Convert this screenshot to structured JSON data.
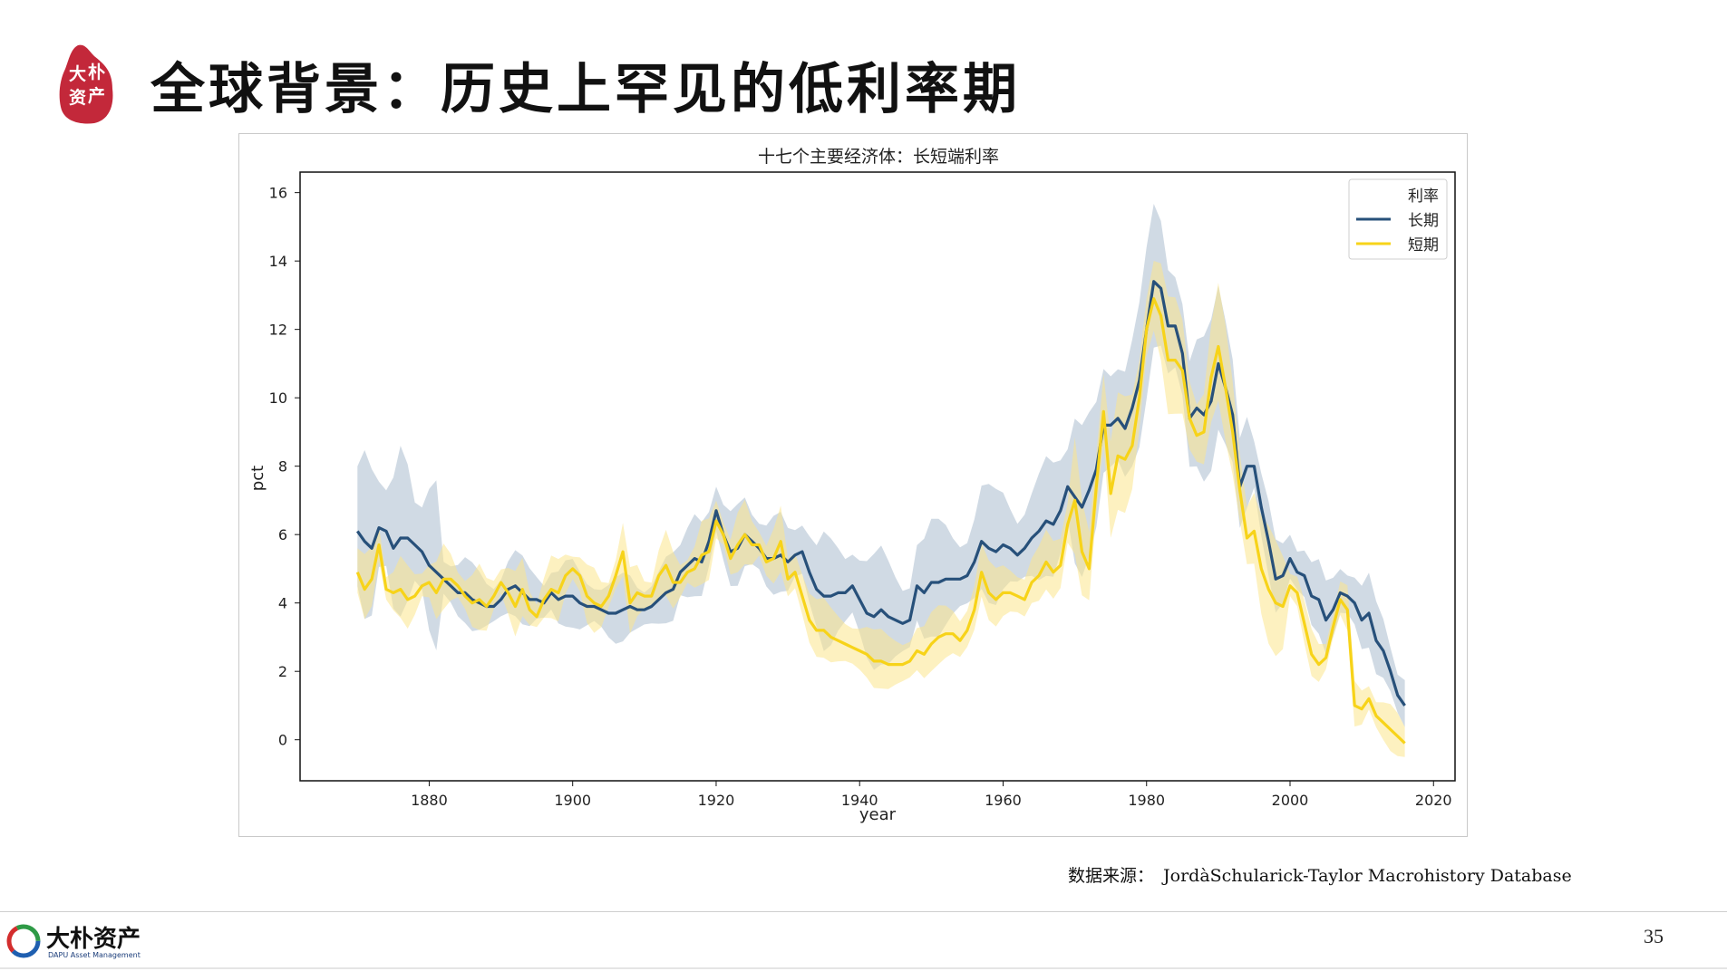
{
  "slide": {
    "title": "全球背景：历史上罕见的低利率期",
    "seal_text": "大朴资产",
    "source_label": "数据来源：",
    "source_text": "JordàSchularick-Taylor Macrohistory Database",
    "page_number": "35",
    "logo_cn": "大朴资产",
    "logo_en": "DAPU Asset Management"
  },
  "colors": {
    "long": "#27507a",
    "long_band": "#a9bccd",
    "short": "#f7d319",
    "short_band": "#fbe58c",
    "seal": "#c3283a",
    "axis": "#111111"
  },
  "chart_data": {
    "type": "line",
    "title": "十七个主要经济体：长短端利率",
    "xlabel": "year",
    "ylabel": "pct",
    "xlim": [
      1862,
      2023
    ],
    "ylim": [
      -1.2,
      16.6
    ],
    "xticks": [
      1880,
      1900,
      1920,
      1940,
      1960,
      1980,
      2000,
      2020
    ],
    "yticks": [
      0,
      2,
      4,
      6,
      8,
      10,
      12,
      14,
      16
    ],
    "grid": false,
    "legend": {
      "title": "利率",
      "position": "top-right"
    },
    "series": [
      {
        "name": "长期",
        "color": "#27507a",
        "points": [
          [
            1870,
            6.1
          ],
          [
            1871,
            5.8
          ],
          [
            1872,
            5.6
          ],
          [
            1873,
            6.2
          ],
          [
            1874,
            6.1
          ],
          [
            1875,
            5.6
          ],
          [
            1876,
            5.9
          ],
          [
            1877,
            5.9
          ],
          [
            1878,
            5.7
          ],
          [
            1879,
            5.5
          ],
          [
            1880,
            5.1
          ],
          [
            1881,
            4.9
          ],
          [
            1882,
            4.7
          ],
          [
            1883,
            4.5
          ],
          [
            1884,
            4.3
          ],
          [
            1885,
            4.3
          ],
          [
            1886,
            4.1
          ],
          [
            1887,
            4.0
          ],
          [
            1888,
            3.9
          ],
          [
            1889,
            3.9
          ],
          [
            1890,
            4.1
          ],
          [
            1891,
            4.4
          ],
          [
            1892,
            4.5
          ],
          [
            1893,
            4.3
          ],
          [
            1894,
            4.1
          ],
          [
            1895,
            4.1
          ],
          [
            1896,
            4.0
          ],
          [
            1897,
            4.3
          ],
          [
            1898,
            4.1
          ],
          [
            1899,
            4.2
          ],
          [
            1900,
            4.2
          ],
          [
            1901,
            4.0
          ],
          [
            1902,
            3.9
          ],
          [
            1903,
            3.9
          ],
          [
            1904,
            3.8
          ],
          [
            1905,
            3.7
          ],
          [
            1906,
            3.7
          ],
          [
            1907,
            3.8
          ],
          [
            1908,
            3.9
          ],
          [
            1909,
            3.8
          ],
          [
            1910,
            3.8
          ],
          [
            1911,
            3.9
          ],
          [
            1912,
            4.1
          ],
          [
            1913,
            4.3
          ],
          [
            1914,
            4.4
          ],
          [
            1915,
            4.9
          ],
          [
            1916,
            5.1
          ],
          [
            1917,
            5.3
          ],
          [
            1918,
            5.2
          ],
          [
            1919,
            5.8
          ],
          [
            1920,
            6.7
          ],
          [
            1921,
            6.0
          ],
          [
            1922,
            5.5
          ],
          [
            1923,
            5.6
          ],
          [
            1924,
            6.0
          ],
          [
            1925,
            5.8
          ],
          [
            1926,
            5.6
          ],
          [
            1927,
            5.3
          ],
          [
            1928,
            5.3
          ],
          [
            1929,
            5.4
          ],
          [
            1930,
            5.2
          ],
          [
            1931,
            5.4
          ],
          [
            1932,
            5.5
          ],
          [
            1933,
            4.9
          ],
          [
            1934,
            4.4
          ],
          [
            1935,
            4.2
          ],
          [
            1936,
            4.2
          ],
          [
            1937,
            4.3
          ],
          [
            1938,
            4.3
          ],
          [
            1939,
            4.5
          ],
          [
            1940,
            4.1
          ],
          [
            1941,
            3.7
          ],
          [
            1942,
            3.6
          ],
          [
            1943,
            3.8
          ],
          [
            1944,
            3.6
          ],
          [
            1945,
            3.5
          ],
          [
            1946,
            3.4
          ],
          [
            1947,
            3.5
          ],
          [
            1948,
            4.5
          ],
          [
            1949,
            4.3
          ],
          [
            1950,
            4.6
          ],
          [
            1951,
            4.6
          ],
          [
            1952,
            4.7
          ],
          [
            1953,
            4.7
          ],
          [
            1954,
            4.7
          ],
          [
            1955,
            4.8
          ],
          [
            1956,
            5.2
          ],
          [
            1957,
            5.8
          ],
          [
            1958,
            5.6
          ],
          [
            1959,
            5.5
          ],
          [
            1960,
            5.7
          ],
          [
            1961,
            5.6
          ],
          [
            1962,
            5.4
          ],
          [
            1963,
            5.6
          ],
          [
            1964,
            5.9
          ],
          [
            1965,
            6.1
          ],
          [
            1966,
            6.4
          ],
          [
            1967,
            6.3
          ],
          [
            1968,
            6.7
          ],
          [
            1969,
            7.4
          ],
          [
            1970,
            7.1
          ],
          [
            1971,
            6.8
          ],
          [
            1972,
            7.3
          ],
          [
            1973,
            7.9
          ],
          [
            1974,
            9.2
          ],
          [
            1975,
            9.2
          ],
          [
            1976,
            9.4
          ],
          [
            1977,
            9.1
          ],
          [
            1978,
            9.7
          ],
          [
            1979,
            10.5
          ],
          [
            1980,
            12.0
          ],
          [
            1981,
            13.4
          ],
          [
            1982,
            13.2
          ],
          [
            1983,
            12.1
          ],
          [
            1984,
            12.1
          ],
          [
            1985,
            11.3
          ],
          [
            1986,
            9.4
          ],
          [
            1987,
            9.7
          ],
          [
            1988,
            9.5
          ],
          [
            1989,
            9.9
          ],
          [
            1990,
            11.0
          ],
          [
            1991,
            10.3
          ],
          [
            1992,
            9.5
          ],
          [
            1993,
            7.4
          ],
          [
            1994,
            8.0
          ],
          [
            1995,
            8.0
          ],
          [
            1996,
            6.8
          ],
          [
            1997,
            5.8
          ],
          [
            1998,
            4.7
          ],
          [
            1999,
            4.8
          ],
          [
            2000,
            5.3
          ],
          [
            2001,
            4.9
          ],
          [
            2002,
            4.8
          ],
          [
            2003,
            4.2
          ],
          [
            2004,
            4.1
          ],
          [
            2005,
            3.5
          ],
          [
            2006,
            3.8
          ],
          [
            2007,
            4.3
          ],
          [
            2008,
            4.2
          ],
          [
            2009,
            4.0
          ],
          [
            2010,
            3.5
          ],
          [
            2011,
            3.7
          ],
          [
            2012,
            2.9
          ],
          [
            2013,
            2.6
          ],
          [
            2014,
            2.0
          ],
          [
            2015,
            1.3
          ],
          [
            2016,
            1.0
          ]
        ]
      },
      {
        "name": "短期",
        "color": "#f7d319",
        "points": [
          [
            1870,
            4.9
          ],
          [
            1871,
            4.4
          ],
          [
            1872,
            4.7
          ],
          [
            1873,
            5.7
          ],
          [
            1874,
            4.4
          ],
          [
            1875,
            4.3
          ],
          [
            1876,
            4.4
          ],
          [
            1877,
            4.1
          ],
          [
            1878,
            4.2
          ],
          [
            1879,
            4.5
          ],
          [
            1880,
            4.6
          ],
          [
            1881,
            4.3
          ],
          [
            1882,
            4.7
          ],
          [
            1883,
            4.7
          ],
          [
            1884,
            4.5
          ],
          [
            1885,
            4.2
          ],
          [
            1886,
            4.0
          ],
          [
            1887,
            4.1
          ],
          [
            1888,
            3.9
          ],
          [
            1889,
            4.2
          ],
          [
            1890,
            4.6
          ],
          [
            1891,
            4.3
          ],
          [
            1892,
            3.9
          ],
          [
            1893,
            4.4
          ],
          [
            1894,
            3.8
          ],
          [
            1895,
            3.6
          ],
          [
            1896,
            4.1
          ],
          [
            1897,
            4.4
          ],
          [
            1898,
            4.3
          ],
          [
            1899,
            4.8
          ],
          [
            1900,
            5.0
          ],
          [
            1901,
            4.8
          ],
          [
            1902,
            4.2
          ],
          [
            1903,
            4.0
          ],
          [
            1904,
            3.9
          ],
          [
            1905,
            4.2
          ],
          [
            1906,
            4.8
          ],
          [
            1907,
            5.5
          ],
          [
            1908,
            4.0
          ],
          [
            1909,
            4.3
          ],
          [
            1910,
            4.2
          ],
          [
            1911,
            4.2
          ],
          [
            1912,
            4.8
          ],
          [
            1913,
            5.1
          ],
          [
            1914,
            4.6
          ],
          [
            1915,
            4.6
          ],
          [
            1916,
            4.9
          ],
          [
            1917,
            5.0
          ],
          [
            1918,
            5.4
          ],
          [
            1919,
            5.5
          ],
          [
            1920,
            6.4
          ],
          [
            1921,
            6.0
          ],
          [
            1922,
            5.3
          ],
          [
            1923,
            5.7
          ],
          [
            1924,
            6.0
          ],
          [
            1925,
            5.7
          ],
          [
            1926,
            5.7
          ],
          [
            1927,
            5.2
          ],
          [
            1928,
            5.3
          ],
          [
            1929,
            5.8
          ],
          [
            1930,
            4.7
          ],
          [
            1931,
            4.9
          ],
          [
            1932,
            4.2
          ],
          [
            1933,
            3.5
          ],
          [
            1934,
            3.2
          ],
          [
            1935,
            3.2
          ],
          [
            1936,
            3.0
          ],
          [
            1937,
            2.9
          ],
          [
            1938,
            2.8
          ],
          [
            1939,
            2.7
          ],
          [
            1940,
            2.6
          ],
          [
            1941,
            2.5
          ],
          [
            1942,
            2.3
          ],
          [
            1943,
            2.3
          ],
          [
            1944,
            2.2
          ],
          [
            1945,
            2.2
          ],
          [
            1946,
            2.2
          ],
          [
            1947,
            2.3
          ],
          [
            1948,
            2.6
          ],
          [
            1949,
            2.5
          ],
          [
            1950,
            2.8
          ],
          [
            1951,
            3.0
          ],
          [
            1952,
            3.1
          ],
          [
            1953,
            3.1
          ],
          [
            1954,
            2.9
          ],
          [
            1955,
            3.2
          ],
          [
            1956,
            3.8
          ],
          [
            1957,
            4.9
          ],
          [
            1958,
            4.3
          ],
          [
            1959,
            4.1
          ],
          [
            1960,
            4.3
          ],
          [
            1961,
            4.3
          ],
          [
            1962,
            4.2
          ],
          [
            1963,
            4.1
          ],
          [
            1964,
            4.6
          ],
          [
            1965,
            4.8
          ],
          [
            1966,
            5.2
          ],
          [
            1967,
            4.9
          ],
          [
            1968,
            5.1
          ],
          [
            1969,
            6.3
          ],
          [
            1970,
            7.0
          ],
          [
            1971,
            5.5
          ],
          [
            1972,
            5.0
          ],
          [
            1973,
            7.4
          ],
          [
            1974,
            9.6
          ],
          [
            1975,
            7.2
          ],
          [
            1976,
            8.3
          ],
          [
            1977,
            8.2
          ],
          [
            1978,
            8.6
          ],
          [
            1979,
            10.0
          ],
          [
            1980,
            12.0
          ],
          [
            1981,
            12.9
          ],
          [
            1982,
            12.4
          ],
          [
            1983,
            11.1
          ],
          [
            1984,
            11.1
          ],
          [
            1985,
            10.8
          ],
          [
            1986,
            9.4
          ],
          [
            1987,
            8.9
          ],
          [
            1988,
            9.0
          ],
          [
            1989,
            10.6
          ],
          [
            1990,
            11.5
          ],
          [
            1991,
            10.3
          ],
          [
            1992,
            9.0
          ],
          [
            1993,
            7.3
          ],
          [
            1994,
            5.9
          ],
          [
            1995,
            6.1
          ],
          [
            1996,
            5.0
          ],
          [
            1997,
            4.4
          ],
          [
            1998,
            4.0
          ],
          [
            1999,
            3.9
          ],
          [
            2000,
            4.5
          ],
          [
            2001,
            4.3
          ],
          [
            2002,
            3.4
          ],
          [
            2003,
            2.5
          ],
          [
            2004,
            2.2
          ],
          [
            2005,
            2.4
          ],
          [
            2006,
            3.3
          ],
          [
            2007,
            4.1
          ],
          [
            2008,
            3.8
          ],
          [
            2009,
            1.0
          ],
          [
            2010,
            0.9
          ],
          [
            2011,
            1.2
          ],
          [
            2012,
            0.7
          ],
          [
            2013,
            0.5
          ],
          [
            2014,
            0.3
          ],
          [
            2015,
            0.1
          ],
          [
            2016,
            -0.1
          ]
        ]
      }
    ]
  }
}
